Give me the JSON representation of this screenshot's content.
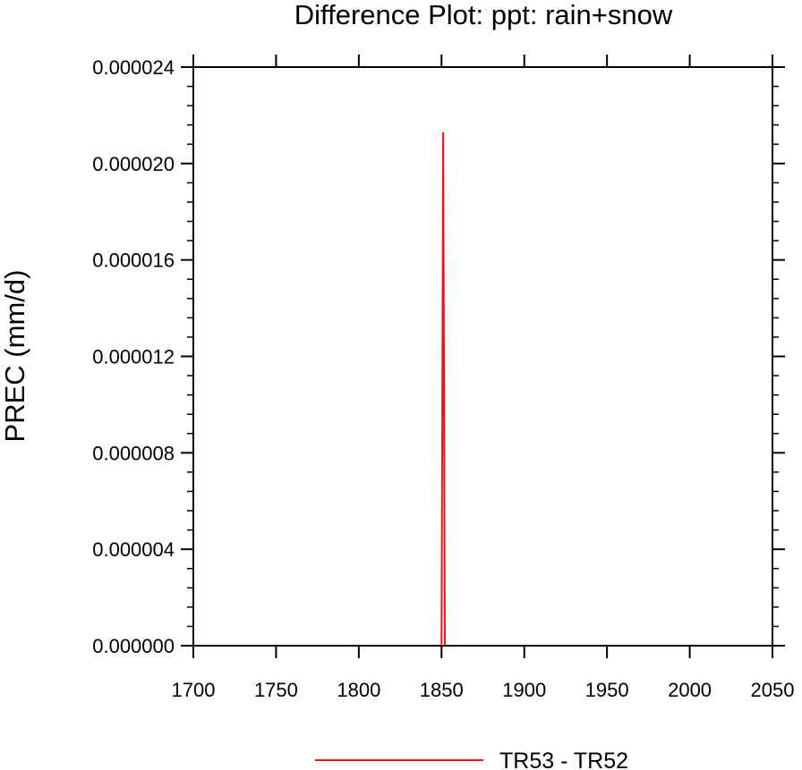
{
  "chart_data": {
    "type": "line",
    "title": "Difference Plot: ppt: rain+snow",
    "xlabel": "",
    "ylabel": "PREC  (mm/d)",
    "xlim": [
      1700,
      2050
    ],
    "ylim": [
      0,
      2.4e-05
    ],
    "x_ticks": [
      1700,
      1750,
      1800,
      1850,
      1900,
      1950,
      2000,
      2050
    ],
    "x_tick_labels": [
      "1700",
      "1750",
      "1800",
      "1850",
      "1900",
      "1950",
      "2000",
      "2050"
    ],
    "y_ticks": [
      0,
      4e-06,
      8e-06,
      1.2e-05,
      1.6e-05,
      2e-05,
      2.4e-05
    ],
    "y_tick_labels": [
      "0.000000",
      "0.000004",
      "0.000008",
      "0.000012",
      "0.000016",
      "0.000020",
      "0.000024"
    ],
    "grid": false,
    "legend_position": "bottom-center",
    "series": [
      {
        "name": "TR53 - TR52",
        "color": "#e8141c",
        "x": [
          1850,
          1851,
          1852
        ],
        "y": [
          0,
          2.13e-05,
          0
        ]
      }
    ]
  }
}
